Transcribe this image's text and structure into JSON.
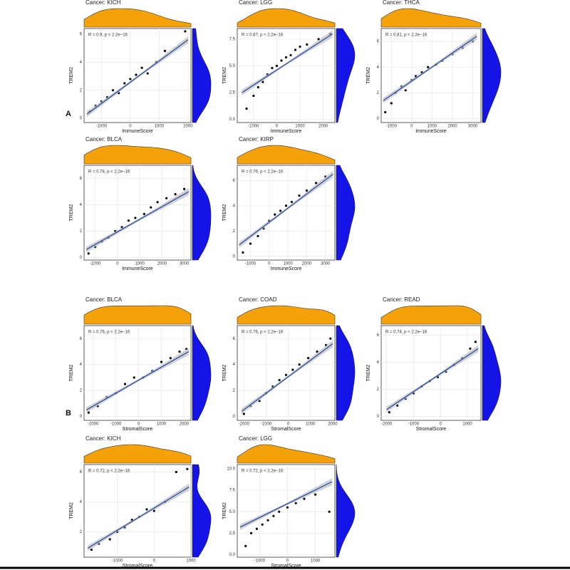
{
  "panel_labels": [
    "A",
    "B"
  ],
  "chart_data": [
    {
      "type": "scatter",
      "title": "Cancer: KICH",
      "annotation": "R = 0.9, p < 2.2e−16",
      "x_label": "ImmuneScore",
      "y_label": "TREM2",
      "xlim": [
        -1600,
        2100
      ],
      "xticks": [
        -1000,
        0,
        1000,
        2000
      ],
      "ylim": [
        -0.3,
        6.4
      ],
      "yticks": [
        0,
        2,
        4,
        6
      ],
      "x": [
        -1400,
        -1200,
        -1000,
        -800,
        -600,
        -400,
        -200,
        0,
        200,
        400,
        600,
        900,
        1200,
        1900
      ],
      "values": [
        0.5,
        0.9,
        1.2,
        1.5,
        2.0,
        1.8,
        2.5,
        2.8,
        3.1,
        3.6,
        3.2,
        4.0,
        4.8,
        6.2
      ],
      "fit": {
        "x": [
          -1500,
          2000
        ],
        "y": [
          0.3,
          5.6
        ]
      }
    },
    {
      "type": "scatter",
      "title": "Cancer: LGG",
      "annotation": "R = 0.87, p < 2.2e−16",
      "x_label": "ImmuneScore",
      "y_label": "TREM2",
      "xlim": [
        -1700,
        2500
      ],
      "xticks": [
        -1000,
        0,
        1000,
        2000
      ],
      "ylim": [
        -0.3,
        8.5
      ],
      "yticks": [
        {
          "value": 0,
          "label": "0.0"
        },
        2.5,
        {
          "value": 5,
          "label": "5.0"
        },
        7.5
      ],
      "x": [
        -1300,
        -1000,
        -800,
        -600,
        -400,
        -200,
        0,
        200,
        400,
        600,
        800,
        1000,
        1300,
        1800,
        2300
      ],
      "values": [
        1,
        2.2,
        3,
        3.5,
        4.2,
        4.8,
        5,
        5.5,
        5.8,
        6,
        6.5,
        6.8,
        7,
        7.5,
        8
      ],
      "fit": {
        "x": [
          -1500,
          2400
        ],
        "y": [
          2.5,
          8.0
        ]
      }
    },
    {
      "type": "scatter",
      "title": "Cancer: THCA",
      "annotation": "R = 0.81, p < 2.2e−16",
      "x_label": "ImmuneScore",
      "y_label": "TREM2",
      "xlim": [
        -1500,
        3400
      ],
      "xticks": [
        -1000,
        0,
        1000,
        2000,
        3000
      ],
      "ylim": [
        -0.3,
        7
      ],
      "yticks": [
        0,
        2,
        4,
        6
      ],
      "x": [
        -1300,
        -1000,
        -800,
        -500,
        -300,
        0,
        200,
        500,
        800,
        1200,
        1500,
        2000,
        2500,
        3000
      ],
      "values": [
        0.5,
        1.2,
        2,
        2.5,
        2.2,
        3,
        3.3,
        3.6,
        4,
        4.2,
        4.5,
        5,
        5.5,
        6
      ],
      "fit": {
        "x": [
          -1400,
          3200
        ],
        "y": [
          1.4,
          6.4
        ]
      }
    },
    {
      "type": "scatter",
      "title": "Cancer: BLCA",
      "annotation": "R = 0.78, p < 2.2e−16",
      "x_label": "ImmuneScore",
      "y_label": "TREM2",
      "xlim": [
        -1500,
        3300
      ],
      "xticks": [
        -1000,
        0,
        1000,
        2000,
        3000
      ],
      "ylim": [
        -0.2,
        7
      ],
      "yticks": [
        0,
        2,
        4,
        6
      ],
      "x": [
        -1300,
        -1000,
        -700,
        -400,
        -100,
        200,
        500,
        800,
        1200,
        1500,
        1800,
        2200,
        2600,
        3000
      ],
      "values": [
        0.3,
        0.8,
        1.2,
        1.5,
        2,
        2.3,
        2.8,
        3,
        3.3,
        3.8,
        4.2,
        4.5,
        4.8,
        5.2
      ],
      "fit": {
        "x": [
          -1400,
          3200
        ],
        "y": [
          0.6,
          5.0
        ]
      }
    },
    {
      "type": "scatter",
      "title": "Cancer: KIRP",
      "annotation": "R = 0.76, p < 2.2e−16",
      "x_label": "ImmuneScore",
      "y_label": "TREM2",
      "xlim": [
        -1700,
        3500
      ],
      "xticks": [
        -1000,
        0,
        1000,
        2000,
        3000
      ],
      "ylim": [
        -0.3,
        7.2
      ],
      "yticks": [
        0,
        2,
        4,
        6
      ],
      "x": [
        -1400,
        -1000,
        -600,
        -300,
        0,
        300,
        600,
        900,
        1200,
        1600,
        2000,
        2500,
        3000
      ],
      "values": [
        0.3,
        1,
        1.6,
        2.2,
        2.8,
        3.3,
        3.6,
        4,
        4.3,
        4.8,
        5.2,
        5.8,
        6.3
      ],
      "fit": {
        "x": [
          -1600,
          3400
        ],
        "y": [
          0.9,
          6.5
        ]
      }
    },
    {
      "type": "scatter",
      "title": "Cancer: BLCA",
      "annotation": "R = 0.76, p < 2.2e−16",
      "x_label": "StromalScore",
      "y_label": "TREM2",
      "xlim": [
        -2400,
        2300
      ],
      "xticks": [
        -2000,
        -1000,
        0,
        1000,
        2000
      ],
      "ylim": [
        -0.3,
        7
      ],
      "yticks": [
        0,
        2,
        4,
        6
      ],
      "x": [
        -2200,
        -1800,
        -1400,
        -1000,
        -600,
        -200,
        200,
        600,
        1000,
        1400,
        1800,
        2100
      ],
      "values": [
        0.3,
        0.8,
        1.5,
        1.8,
        2.5,
        3,
        3,
        3.5,
        4.2,
        4.5,
        5,
        5.2
      ],
      "fit": {
        "x": [
          -2300,
          2200
        ],
        "y": [
          0.5,
          5.0
        ]
      }
    },
    {
      "type": "scatter",
      "title": "Cancer: COAD",
      "annotation": "R = 0.76, p < 2.2e−16",
      "x_label": "StromalScore",
      "y_label": "TREM2",
      "xlim": [
        -2300,
        2100
      ],
      "xticks": [
        -2000,
        -1000,
        0,
        1000,
        2000
      ],
      "ylim": [
        -0.3,
        7
      ],
      "yticks": [
        0,
        2,
        4,
        6
      ],
      "x": [
        -2000,
        -1700,
        -1300,
        -1000,
        -700,
        -400,
        -100,
        200,
        500,
        900,
        1300,
        1700,
        1900
      ],
      "values": [
        0.2,
        0.8,
        1.2,
        1.8,
        2.3,
        2.8,
        3.2,
        3.6,
        4,
        4.5,
        5,
        5.5,
        6
      ],
      "fit": {
        "x": [
          -2100,
          2000
        ],
        "y": [
          0.4,
          5.6
        ]
      }
    },
    {
      "type": "scatter",
      "title": "Cancer: READ",
      "annotation": "R = 0.74, p < 2.2e−16",
      "x_label": "StromalScore",
      "y_label": "TREM2",
      "xlim": [
        -2200,
        1500
      ],
      "xticks": [
        -2000,
        -1000,
        0,
        1000
      ],
      "ylim": [
        -0.3,
        6.7
      ],
      "yticks": [
        0,
        2,
        4,
        6
      ],
      "x": [
        -1900,
        -1600,
        -1300,
        -1000,
        -700,
        -400,
        -100,
        200,
        500,
        800,
        1100,
        1300
      ],
      "values": [
        0.3,
        0.8,
        1.3,
        1.7,
        2.2,
        2.6,
        2.9,
        3.3,
        3.8,
        4.3,
        5,
        5.5
      ],
      "fit": {
        "x": [
          -2000,
          1400
        ],
        "y": [
          0.5,
          5.0
        ]
      }
    },
    {
      "type": "scatter",
      "title": "Cancer: KICH",
      "annotation": "R = 0.72, p < 2.2e−16",
      "x_label": "StromalScore",
      "y_label": "TREM2",
      "xlim": [
        -1900,
        1000
      ],
      "xticks": [
        -1000,
        0,
        1000
      ],
      "ylim": [
        0.3,
        6.5
      ],
      "yticks": [
        2,
        4,
        6
      ],
      "x": [
        -1700,
        -1500,
        -1200,
        -1000,
        -800,
        -600,
        -400,
        -200,
        0,
        300,
        600,
        900
      ],
      "values": [
        0.8,
        1.2,
        1.5,
        2,
        2.3,
        2.8,
        3,
        3.5,
        3.4,
        4,
        6,
        6.2
      ],
      "fit": {
        "x": [
          -1800,
          950
        ],
        "y": [
          0.9,
          5.0
        ]
      }
    },
    {
      "type": "scatter",
      "title": "Cancer: LGG",
      "annotation": "R = 0.72, p < 2.2e−16",
      "x_label": "StromalScore",
      "y_label": "TREM2",
      "xlim": [
        -1800,
        1700
      ],
      "xticks": [
        -1000,
        0,
        1000
      ],
      "ylim": [
        -0.3,
        10.5
      ],
      "yticks": [
        {
          "value": 0,
          "label": "0.0"
        },
        2.5,
        {
          "value": 5,
          "label": "5.0"
        },
        7.5,
        {
          "value": 10,
          "label": "10.0"
        }
      ],
      "x": [
        -1500,
        -1300,
        -1100,
        -900,
        -700,
        -500,
        -300,
        0,
        300,
        600,
        1000,
        1500
      ],
      "values": [
        1,
        2.5,
        3,
        3.5,
        4,
        4.5,
        5,
        5.5,
        6,
        6.5,
        7,
        5
      ],
      "fit": {
        "x": [
          -1700,
          1600
        ],
        "y": [
          3.2,
          8.5
        ]
      }
    }
  ]
}
